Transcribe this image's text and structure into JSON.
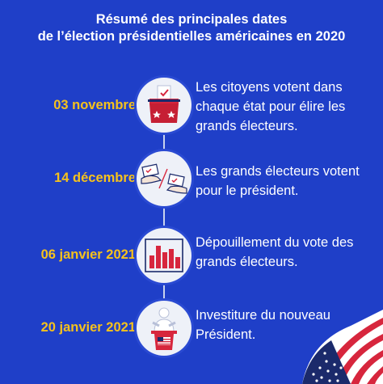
{
  "title": {
    "line1": "Résumé des principales dates",
    "line2": "de l’élection présidentielles américaines en 2020"
  },
  "steps": [
    {
      "date": "03 novembre",
      "icon": "ballot-box-icon",
      "description": "Les citoyens votent dans chaque état pour élire les grands électeurs."
    },
    {
      "date": "14 décembre",
      "icon": "vote-hands-icon",
      "description": "Les grands électeurs votent pour le président."
    },
    {
      "date": "06 janvier 2021",
      "icon": "bar-chart-icon",
      "description": "Dépouillement du vote des grands électeurs."
    },
    {
      "date": "20 janvier 2021",
      "icon": "president-podium-icon",
      "description": "Investiture du nouveau Président."
    }
  ],
  "colors": {
    "background": "#1f3fc8",
    "date": "#f6c21c",
    "accent_red": "#d7263d",
    "navy": "#1b2a6b",
    "circle": "#eef1f8"
  }
}
